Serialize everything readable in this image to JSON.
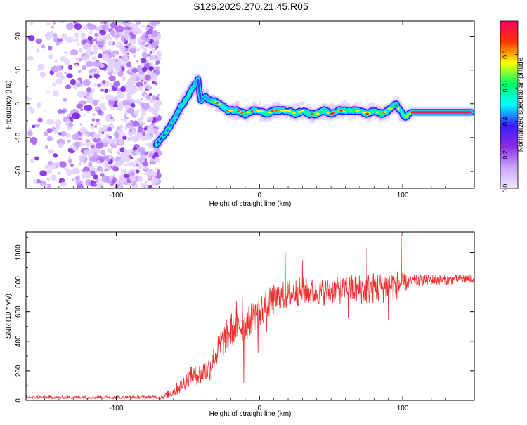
{
  "page_title": "S126.2025.270.21.45.R05",
  "chart_data": [
    {
      "type": "heatmap",
      "title": "S126.2025.270.21.45.R05",
      "xlabel": "Height of straight line (km)",
      "ylabel": "Frequency (Hz)",
      "xlim": [
        -163,
        150
      ],
      "ylim": [
        -25,
        24.5
      ],
      "x_ticks": [
        -100,
        0,
        100
      ],
      "y_ticks": [
        -20,
        -10,
        0,
        10,
        20
      ],
      "colorbar": {
        "label": "Normalized spectral amplitude",
        "range": [
          0,
          1
        ],
        "ticks": [
          0.0,
          0.2,
          0.4,
          0.6,
          0.8
        ],
        "tick_labels": [
          "0.0",
          "0.2",
          "0.4",
          "0.6",
          "0.8"
        ],
        "colors": [
          "#f2e6ff",
          "#c9a6ff",
          "#8a2be2",
          "#3b1bff",
          "#00ffff",
          "#00ff66",
          "#ffff00",
          "#ff3300",
          "#ff0066"
        ]
      },
      "noise_region_x": [
        -163,
        -71
      ],
      "ridge": {
        "x": [
          -72,
          -66,
          -60,
          -55,
          -50,
          -46,
          -43,
          -41,
          -38,
          -34,
          -28,
          -22,
          -16,
          -10,
          -5,
          0,
          5,
          10,
          15,
          20,
          25,
          30,
          35,
          40,
          45,
          50,
          55,
          60,
          65,
          70,
          75,
          80,
          85,
          90,
          95,
          98,
          102,
          106,
          112,
          120,
          130,
          140,
          148
        ],
        "y": [
          -12,
          -9,
          -5,
          -1,
          2,
          5,
          7,
          1,
          2,
          1,
          0,
          -2,
          -2,
          -3,
          -2,
          -2,
          -3,
          -2,
          -2,
          -2,
          -3,
          -2,
          -3,
          -3,
          -2,
          -3,
          -2,
          -2,
          -2,
          -2,
          -3,
          -2,
          -3,
          -2,
          0,
          -2,
          -4,
          -2.5,
          -2.5,
          -2.5,
          -2.5,
          -2.5,
          -2.5
        ],
        "amplitude": [
          0.35,
          0.4,
          0.45,
          0.45,
          0.5,
          0.5,
          0.4,
          0.4,
          0.45,
          0.45,
          0.5,
          0.5,
          0.55,
          0.6,
          0.55,
          0.55,
          0.6,
          0.6,
          0.65,
          0.6,
          0.6,
          0.55,
          0.6,
          0.6,
          0.55,
          0.55,
          0.6,
          0.6,
          0.55,
          0.55,
          0.6,
          0.6,
          0.55,
          0.5,
          0.45,
          0.5,
          0.6,
          0.8,
          0.85,
          0.9,
          0.85,
          0.9,
          0.85
        ]
      }
    },
    {
      "type": "line",
      "xlabel": "Height of straight line (km)",
      "ylabel": "SNR (10 * v/v)",
      "xlim": [
        -163,
        150
      ],
      "ylim": [
        0,
        1140
      ],
      "x_ticks": [
        -100,
        0,
        100
      ],
      "y_ticks": [
        0,
        200,
        400,
        600,
        800,
        1000
      ],
      "line_color": "#f03030",
      "series": [
        {
          "name": "SNR",
          "envelope": {
            "x": [
              -163,
              -140,
              -120,
              -100,
              -80,
              -68,
              -60,
              -55,
              -50,
              -45,
              -40,
              -35,
              -30,
              -25,
              -20,
              -15,
              -10,
              -5,
              0,
              5,
              10,
              15,
              20,
              30,
              40,
              50,
              60,
              70,
              80,
              90,
              95,
              100,
              110,
              120,
              130,
              140,
              150
            ],
            "y": [
              20,
              20,
              22,
              20,
              22,
              22,
              60,
              100,
              150,
              170,
              180,
              220,
              320,
              400,
              480,
              500,
              510,
              560,
              600,
              640,
              680,
              700,
              720,
              740,
              730,
              740,
              750,
              750,
              760,
              770,
              780,
              790,
              810,
              815,
              815,
              820,
              825
            ]
          },
          "noise_amplitude": {
            "x": [
              -163,
              -70,
              -60,
              -40,
              -20,
              0,
              20,
              40,
              60,
              80,
              95,
              105,
              150
            ],
            "y": [
              10,
              10,
              40,
              80,
              120,
              110,
              100,
              90,
              100,
              110,
              110,
              40,
              30
            ]
          },
          "peaks": [
            {
              "x": -48,
              "y": 230
            },
            {
              "x": -38,
              "y": 250
            },
            {
              "x": -27,
              "y": 470
            },
            {
              "x": -16,
              "y": 670
            },
            {
              "x": -12,
              "y": 700
            },
            {
              "x": 18,
              "y": 1000
            },
            {
              "x": 30,
              "y": 950
            },
            {
              "x": 75,
              "y": 1030
            },
            {
              "x": 90,
              "y": 1060
            },
            {
              "x": 99,
              "y": 1140
            }
          ],
          "dips": [
            {
              "x": -11,
              "y": 120
            },
            {
              "x": -1,
              "y": 320
            },
            {
              "x": 5,
              "y": 460
            },
            {
              "x": 62,
              "y": 560
            },
            {
              "x": 90,
              "y": 540
            }
          ]
        }
      ]
    }
  ]
}
